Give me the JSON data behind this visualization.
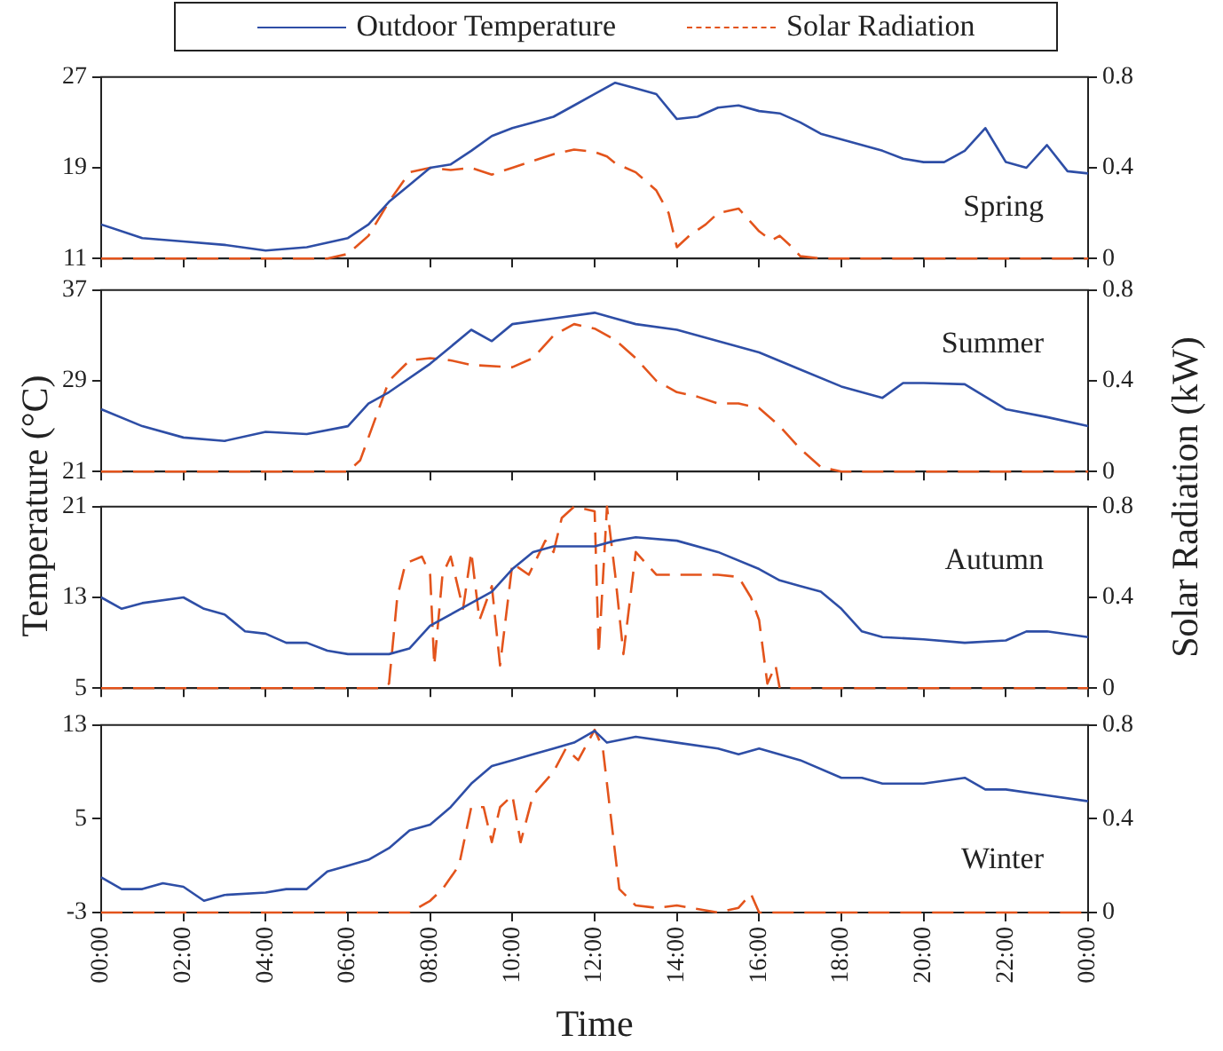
{
  "chart_data": [
    {
      "type": "line",
      "ylabel": "Temperature (°C)",
      "y2label": "Solar Radiation (kW)",
      "legend": "top",
      "marker": "none",
      "tick_labels": "y",
      "annotations": [
        "Spring"
      ],
      "xlim": [
        0,
        24
      ],
      "xticks": [
        {
          "value": 0,
          "label": null
        },
        {
          "value": 2,
          "label": null
        },
        {
          "value": 4,
          "label": null
        },
        {
          "value": 6,
          "label": null
        },
        {
          "value": 8,
          "label": null
        },
        {
          "value": 10,
          "label": null
        },
        {
          "value": 12,
          "label": null
        },
        {
          "value": 14,
          "label": null
        },
        {
          "value": 16,
          "label": null
        },
        {
          "value": 18,
          "label": null
        },
        {
          "value": 20,
          "label": null
        },
        {
          "value": 22,
          "label": null
        },
        {
          "value": 24,
          "label": null
        }
      ],
      "ylim": [
        11,
        27
      ],
      "yticks": [
        11,
        19,
        27
      ],
      "y2lim": [
        0,
        0.8
      ],
      "y2ticks": [
        0,
        0.4,
        0.8
      ],
      "series": [
        {
          "name": "Outdoor Temperature",
          "color": "#2e4ea6",
          "line_style": "solid",
          "x": [
            0,
            1,
            2,
            3,
            4,
            5,
            6,
            6.5,
            7,
            7.5,
            8,
            8.5,
            9,
            9.5,
            10,
            10.5,
            11,
            11.5,
            12,
            12.5,
            13,
            13.5,
            14,
            14.5,
            15,
            15.5,
            16,
            16.5,
            17,
            17.5,
            18,
            19,
            19.5,
            20,
            20.5,
            21,
            21.5,
            22,
            22.5,
            23,
            23.5,
            24
          ],
          "values": [
            14,
            12.8,
            12.5,
            12.2,
            11.7,
            12,
            12.8,
            14,
            16,
            17.5,
            19,
            19.3,
            20.5,
            21.8,
            22.5,
            23,
            23.5,
            24.5,
            25.5,
            26.5,
            26,
            25.5,
            23.3,
            23.5,
            24.3,
            24.5,
            24,
            23.8,
            23,
            22,
            21.5,
            20.5,
            19.8,
            19.5,
            19.5,
            20.5,
            22.5,
            19.5,
            19,
            21,
            18.7,
            18.5
          ]
        },
        {
          "name": "Solar Radiation",
          "color": "#e3541c",
          "axis": "y2",
          "line_style": "dashed",
          "x": [
            0,
            5.5,
            6,
            6.5,
            7,
            7.5,
            8,
            8.5,
            9,
            9.5,
            10,
            10.5,
            11,
            11.5,
            12,
            12.3,
            12.5,
            13,
            13.5,
            13.8,
            14,
            14.3,
            14.7,
            15,
            15.5,
            16,
            16.3,
            16.5,
            16.8,
            17,
            17.5,
            24
          ],
          "values": [
            0,
            0,
            0.02,
            0.1,
            0.25,
            0.38,
            0.4,
            0.39,
            0.4,
            0.37,
            0.4,
            0.43,
            0.46,
            0.48,
            0.47,
            0.45,
            0.42,
            0.38,
            0.3,
            0.2,
            0.05,
            0.1,
            0.15,
            0.2,
            0.22,
            0.12,
            0.08,
            0.1,
            0.05,
            0.01,
            0,
            0
          ]
        }
      ]
    },
    {
      "type": "line",
      "marker": "none",
      "tick_labels": "y",
      "annotations": [
        "Summer"
      ],
      "xlim": [
        0,
        24
      ],
      "xticks": [
        {
          "value": 0,
          "label": null
        },
        {
          "value": 2,
          "label": null
        },
        {
          "value": 4,
          "label": null
        },
        {
          "value": 6,
          "label": null
        },
        {
          "value": 8,
          "label": null
        },
        {
          "value": 10,
          "label": null
        },
        {
          "value": 12,
          "label": null
        },
        {
          "value": 14,
          "label": null
        },
        {
          "value": 16,
          "label": null
        },
        {
          "value": 18,
          "label": null
        },
        {
          "value": 20,
          "label": null
        },
        {
          "value": 22,
          "label": null
        },
        {
          "value": 24,
          "label": null
        }
      ],
      "ylim": [
        21,
        37
      ],
      "yticks": [
        21,
        29,
        37
      ],
      "y2lim": [
        0,
        0.8
      ],
      "y2ticks": [
        0,
        0.4,
        0.8
      ],
      "series": [
        {
          "color": "#2e4ea6",
          "line_style": "solid",
          "x": [
            0,
            1,
            2,
            3,
            4,
            5,
            6,
            6.5,
            7,
            8,
            8.5,
            9,
            9.5,
            10,
            11,
            12,
            12.5,
            13,
            14,
            15,
            16,
            17,
            18,
            19,
            19.5,
            20,
            21,
            22,
            23,
            24
          ],
          "values": [
            26.5,
            25,
            24,
            23.7,
            24.5,
            24.3,
            25,
            27,
            28,
            30.5,
            32,
            33.5,
            32.5,
            34,
            34.5,
            35,
            34.5,
            34,
            33.5,
            32.5,
            31.5,
            30,
            28.5,
            27.5,
            28.8,
            28.8,
            28.7,
            26.5,
            25.8,
            25
          ]
        },
        {
          "color": "#e3541c",
          "axis": "y2",
          "line_style": "dashed",
          "x": [
            0,
            6,
            6.3,
            6.7,
            7,
            7.5,
            8,
            8.5,
            9,
            10,
            10.5,
            11,
            11.5,
            12,
            12.5,
            13,
            13.5,
            14,
            14.5,
            15,
            15.5,
            16,
            16.5,
            17,
            17.5,
            18,
            24
          ],
          "values": [
            0,
            0,
            0.05,
            0.25,
            0.4,
            0.49,
            0.5,
            0.49,
            0.47,
            0.46,
            0.5,
            0.6,
            0.65,
            0.63,
            0.58,
            0.5,
            0.4,
            0.35,
            0.33,
            0.3,
            0.3,
            0.28,
            0.2,
            0.1,
            0.02,
            0,
            0
          ]
        }
      ]
    },
    {
      "type": "line",
      "marker": "none",
      "tick_labels": "y",
      "annotations": [
        "Autumn"
      ],
      "xlim": [
        0,
        24
      ],
      "xticks": [
        {
          "value": 0,
          "label": null
        },
        {
          "value": 2,
          "label": null
        },
        {
          "value": 4,
          "label": null
        },
        {
          "value": 6,
          "label": null
        },
        {
          "value": 8,
          "label": null
        },
        {
          "value": 10,
          "label": null
        },
        {
          "value": 12,
          "label": null
        },
        {
          "value": 14,
          "label": null
        },
        {
          "value": 16,
          "label": null
        },
        {
          "value": 18,
          "label": null
        },
        {
          "value": 20,
          "label": null
        },
        {
          "value": 22,
          "label": null
        },
        {
          "value": 24,
          "label": null
        }
      ],
      "ylim": [
        5,
        21
      ],
      "yticks": [
        5,
        13,
        21
      ],
      "y2lim": [
        0,
        0.8
      ],
      "y2ticks": [
        0,
        0.4,
        0.8
      ],
      "series": [
        {
          "color": "#2e4ea6",
          "line_style": "solid",
          "x": [
            0,
            0.5,
            1,
            2,
            2.5,
            3,
            3.5,
            4,
            4.5,
            5,
            5.5,
            6,
            7,
            7.5,
            8,
            9,
            9.5,
            10,
            10.5,
            11,
            12,
            12.5,
            13,
            14,
            15,
            16,
            16.5,
            17,
            17.5,
            18,
            18.5,
            19,
            20,
            21,
            22,
            22.5,
            23,
            24
          ],
          "values": [
            13,
            12,
            12.5,
            13,
            12,
            11.5,
            10,
            9.8,
            9,
            9,
            8.3,
            8,
            8,
            8.5,
            10.5,
            12.5,
            13.5,
            15.5,
            17,
            17.5,
            17.5,
            18,
            18.3,
            18,
            17,
            15.5,
            14.5,
            14,
            13.5,
            12,
            10,
            9.5,
            9.3,
            9,
            9.2,
            10,
            10,
            9.5
          ]
        },
        {
          "color": "#e3541c",
          "axis": "y2",
          "line_style": "dashed",
          "x": [
            0,
            6.8,
            7,
            7.2,
            7.4,
            7.8,
            8,
            8.1,
            8.3,
            8.5,
            8.8,
            9,
            9.2,
            9.5,
            9.7,
            10,
            10.4,
            10.8,
            11,
            11.2,
            11.5,
            12,
            12.1,
            12.3,
            12.5,
            12.7,
            13,
            13.5,
            14,
            15,
            15.5,
            15.8,
            16,
            16.2,
            16.4,
            16.5,
            24
          ],
          "values": [
            0,
            0,
            0.02,
            0.4,
            0.55,
            0.58,
            0.5,
            0.1,
            0.5,
            0.58,
            0.35,
            0.6,
            0.3,
            0.45,
            0.1,
            0.55,
            0.5,
            0.65,
            0.6,
            0.75,
            0.8,
            0.78,
            0.15,
            0.8,
            0.5,
            0.15,
            0.6,
            0.5,
            0.5,
            0.5,
            0.49,
            0.4,
            0.3,
            0.02,
            0.1,
            0,
            0
          ]
        }
      ]
    },
    {
      "type": "line",
      "marker": "none",
      "xlabel": "Time",
      "annotations": [
        "Winter"
      ],
      "xlim": [
        0,
        24
      ],
      "xticks": [
        {
          "value": 0,
          "label": "00:00"
        },
        {
          "value": 2,
          "label": "02:00"
        },
        {
          "value": 4,
          "label": "04:00"
        },
        {
          "value": 6,
          "label": "06:00"
        },
        {
          "value": 8,
          "label": "08:00"
        },
        {
          "value": 10,
          "label": "10:00"
        },
        {
          "value": 12,
          "label": "12:00"
        },
        {
          "value": 14,
          "label": "14:00"
        },
        {
          "value": 16,
          "label": "16:00"
        },
        {
          "value": 18,
          "label": "18:00"
        },
        {
          "value": 20,
          "label": "20:00"
        },
        {
          "value": 22,
          "label": "22:00"
        },
        {
          "value": 24,
          "label": "00:00"
        }
      ],
      "ylim": [
        -3,
        13
      ],
      "yticks": [
        -3,
        5,
        13
      ],
      "y2lim": [
        0,
        0.8
      ],
      "y2ticks": [
        0,
        0.4,
        0.8
      ],
      "series": [
        {
          "color": "#2e4ea6",
          "line_style": "solid",
          "x": [
            0,
            0.5,
            1,
            1.5,
            2,
            2.5,
            3,
            4,
            4.5,
            5,
            5.5,
            6,
            6.5,
            7,
            7.5,
            8,
            8.5,
            9,
            9.5,
            10,
            10.5,
            11,
            11.5,
            12,
            12.3,
            13,
            14,
            15,
            15.5,
            16,
            17,
            18,
            18.5,
            19,
            20,
            21,
            21.5,
            22,
            23,
            24
          ],
          "values": [
            0,
            -1,
            -1,
            -0.5,
            -0.8,
            -2,
            -1.5,
            -1.3,
            -1,
            -1,
            0.5,
            1,
            1.5,
            2.5,
            4,
            4.5,
            6,
            8,
            9.5,
            10,
            10.5,
            11,
            11.5,
            12.5,
            11.5,
            12,
            11.5,
            11,
            10.5,
            11,
            10,
            8.5,
            8.5,
            8,
            8,
            8.5,
            7.5,
            7.5,
            7,
            6.5
          ]
        },
        {
          "color": "#e3541c",
          "axis": "y2",
          "line_style": "dashed",
          "x": [
            0,
            7.5,
            8,
            8.3,
            8.7,
            9,
            9.3,
            9.5,
            9.7,
            10,
            10.2,
            10.5,
            11,
            11.3,
            11.6,
            12,
            12.2,
            12.4,
            12.6,
            13,
            13.5,
            14,
            15,
            15.5,
            15.8,
            16,
            24
          ],
          "values": [
            0,
            0,
            0.05,
            0.1,
            0.2,
            0.45,
            0.45,
            0.3,
            0.45,
            0.5,
            0.3,
            0.5,
            0.6,
            0.7,
            0.65,
            0.78,
            0.7,
            0.4,
            0.1,
            0.03,
            0.02,
            0.03,
            0,
            0.02,
            0.08,
            0,
            0
          ]
        }
      ]
    }
  ]
}
